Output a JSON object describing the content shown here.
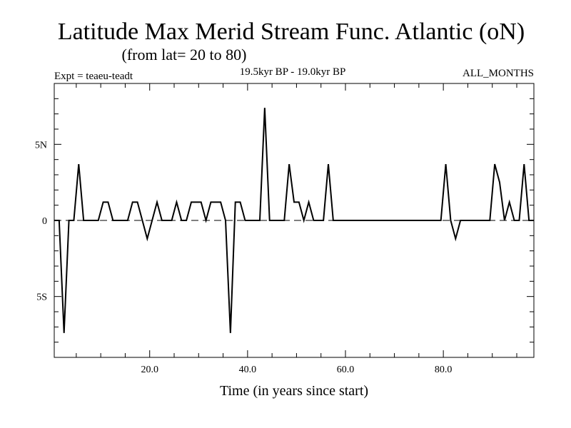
{
  "chart_data": {
    "type": "line",
    "title": "Latitude Max Merid Stream Func. Atlantic (oN)",
    "subtitle": "(from lat= 20 to 80)",
    "expt_label": "Expt = teaeu-teadt",
    "period_label": "19.5kyr BP - 19.0kyr BP",
    "months_label": "ALL_MONTHS",
    "xlabel": "Time (in years since start)",
    "ylabel": "",
    "xlim": [
      0.5,
      98.5
    ],
    "ylim": [
      -9,
      9
    ],
    "x_tick_labels": [
      {
        "value": 20,
        "label": "20.0"
      },
      {
        "value": 40,
        "label": "40.0"
      },
      {
        "value": 60,
        "label": "60.0"
      },
      {
        "value": 80,
        "label": "80.0"
      }
    ],
    "y_tick_labels": [
      {
        "value": 5,
        "label": "5N"
      },
      {
        "value": 0,
        "label": "0"
      },
      {
        "value": -5,
        "label": "5S"
      }
    ],
    "zero_line": "dashed",
    "grid": false,
    "series": [
      {
        "x": [
          0.5,
          1.5,
          2.5,
          3.5,
          4.5,
          5.5,
          6.5,
          7.5,
          8.5,
          9.5,
          10.5,
          11.5,
          12.5,
          13.5,
          14.5,
          15.5,
          16.5,
          17.5,
          18.5,
          19.5,
          20.5,
          21.5,
          22.5,
          23.5,
          24.5,
          25.5,
          26.5,
          27.5,
          28.5,
          29.5,
          30.5,
          31.5,
          32.5,
          33.5,
          34.5,
          35.5,
          36.5,
          37.5,
          38.5,
          39.5,
          40.5,
          41.5,
          42.5,
          43.5,
          44.5,
          45.5,
          46.5,
          47.5,
          48.5,
          49.5,
          50.5,
          51.5,
          52.5,
          53.5,
          54.5,
          55.5,
          56.5,
          57.5,
          58.5,
          59.5,
          60.5,
          61.5,
          62.5,
          63.5,
          64.5,
          65.5,
          66.5,
          67.5,
          68.5,
          69.5,
          70.5,
          71.5,
          72.5,
          73.5,
          74.5,
          75.5,
          76.5,
          77.5,
          78.5,
          79.5,
          80.5,
          81.5,
          82.5,
          83.5,
          84.5,
          85.5,
          86.5,
          87.5,
          88.5,
          89.5,
          90.5,
          91.5,
          92.5,
          93.5,
          94.5,
          95.5,
          96.5,
          97.5,
          98.5
        ],
        "y": [
          0,
          0,
          -7.4,
          0,
          0,
          3.7,
          0,
          0,
          0,
          0,
          1.2,
          1.2,
          0,
          0,
          0,
          0,
          1.2,
          1.2,
          0,
          -1.2,
          0,
          1.2,
          0,
          0,
          0,
          1.2,
          0,
          0,
          1.2,
          1.2,
          1.2,
          0,
          1.2,
          1.2,
          1.2,
          0,
          -7.4,
          1.2,
          1.2,
          0,
          0,
          0,
          0,
          7.4,
          0,
          0,
          0,
          0,
          3.7,
          1.2,
          1.2,
          0,
          1.2,
          0,
          0,
          0,
          3.7,
          0,
          0,
          0,
          0,
          0,
          0,
          0,
          0,
          0,
          0,
          0,
          0,
          0,
          0,
          0,
          0,
          0,
          0,
          0,
          0,
          0,
          0,
          0,
          3.7,
          0,
          -1.2,
          0,
          0,
          0,
          0,
          0,
          0,
          0,
          3.7,
          2.5,
          0,
          1.2,
          0,
          0,
          3.7,
          0,
          0
        ]
      }
    ]
  }
}
